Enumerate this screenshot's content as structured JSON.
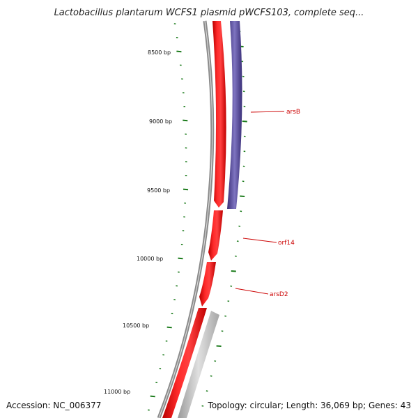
{
  "title": "Lactobacillus plantarum WCFS1 plasmid pWCFS103, complete seq...",
  "accession": "Accession: NC_006377",
  "summary": "Topology: circular; Length: 36,069 bp; Genes: 43",
  "colors": {
    "backbone": "#8a8a8a",
    "forward_gene": "#ee1111",
    "reverse_gene": "#4b3f8f",
    "grey_gene": "#bdbdbd",
    "tick": "#1a7a1a",
    "gene_label": "#cc0000"
  },
  "scale_labels": [
    {
      "bp": 8500,
      "label": "8500 bp"
    },
    {
      "bp": 9000,
      "label": "9000 bp"
    },
    {
      "bp": 9500,
      "label": "9500 bp"
    },
    {
      "bp": 10000,
      "label": "10000 bp"
    },
    {
      "bp": 10500,
      "label": "10500 bp"
    },
    {
      "bp": 11000,
      "label": "11000 bp"
    }
  ],
  "gene_labels": [
    {
      "name": "arsB"
    },
    {
      "name": "orf14"
    },
    {
      "name": "arsD2"
    }
  ]
}
